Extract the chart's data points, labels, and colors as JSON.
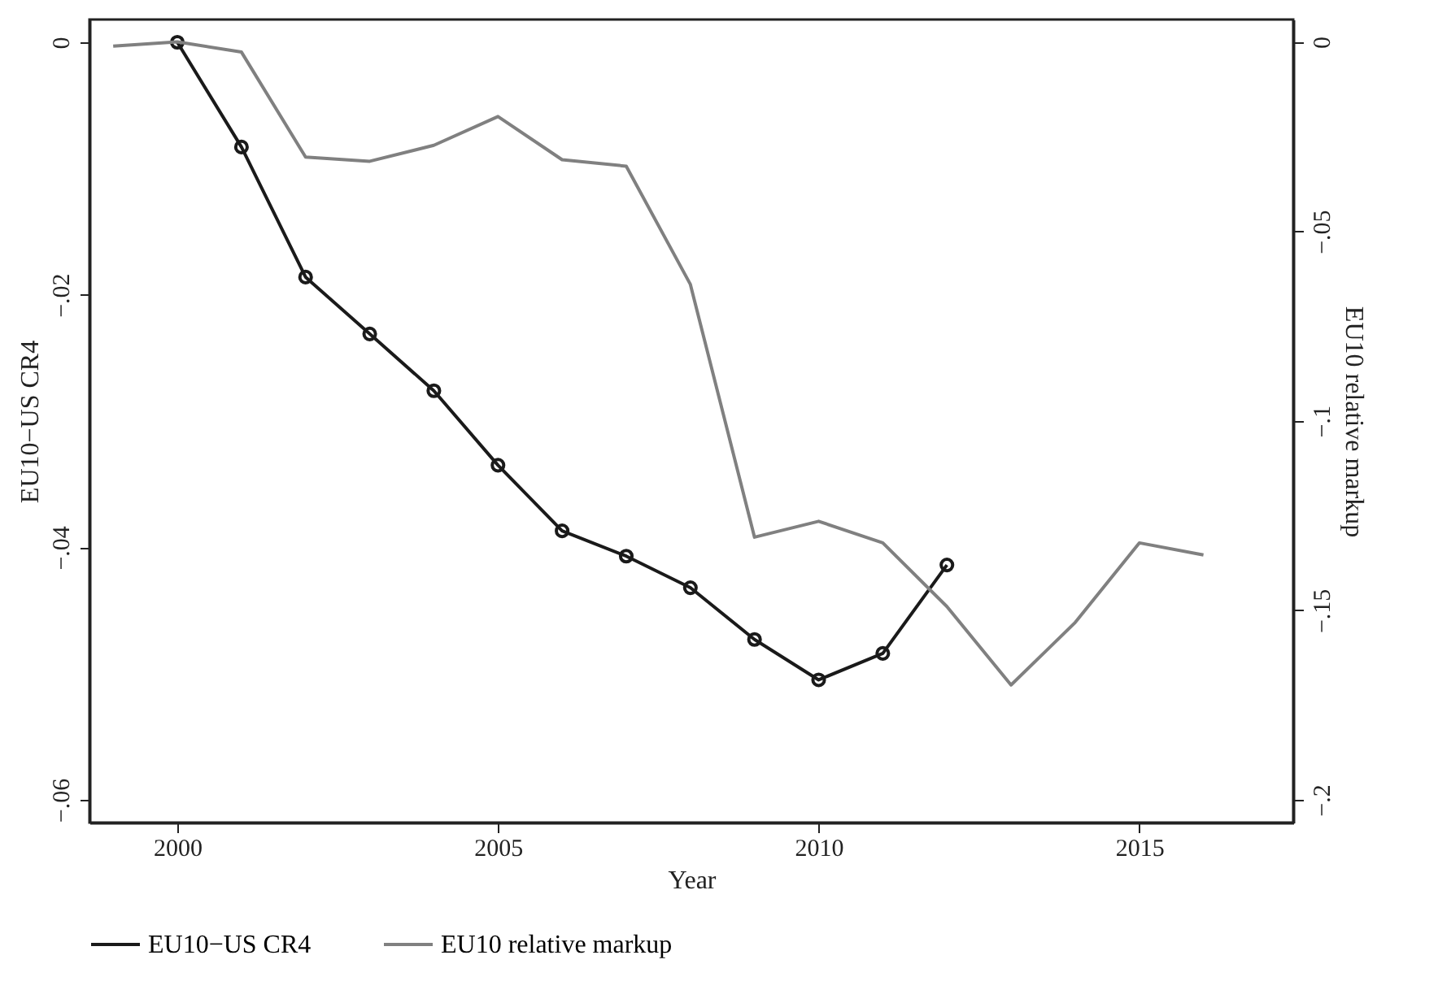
{
  "chart_data": {
    "type": "line",
    "xlabel": "Year",
    "ylabel": "EU10−US CR4",
    "y2label": "EU10 relative markup",
    "x": [
      1999,
      2000,
      2001,
      2002,
      2003,
      2004,
      2005,
      2006,
      2007,
      2008,
      2009,
      2010,
      2011,
      2012,
      2013,
      2014,
      2015,
      2016
    ],
    "series": [
      {
        "name": "EU10−US CR4",
        "color": "#1a1a1a",
        "marker": "circle",
        "values": [
          null,
          0,
          -0.0083,
          -0.0186,
          -0.0231,
          -0.0276,
          -0.0335,
          -0.0387,
          -0.0407,
          -0.0432,
          -0.0473,
          -0.0505,
          -0.0484,
          -0.0414,
          null,
          null,
          null,
          null
        ]
      },
      {
        "name": "EU10 relative markup",
        "color": "#808080",
        "marker": "none",
        "axis": "y2",
        "values": [
          -0.0011,
          0,
          -0.0027,
          -0.0304,
          -0.0315,
          -0.0273,
          -0.0197,
          -0.0311,
          -0.0328,
          -0.064,
          -0.1307,
          -0.1265,
          -0.1322,
          -0.149,
          -0.1697,
          -0.1532,
          -0.1322,
          -0.1354
        ]
      }
    ],
    "xlim": [
      1998.63,
      2017.4
    ],
    "xticks": [
      2000,
      2005,
      2010,
      2015
    ],
    "ylim": [
      -0.0618,
      0.0018
    ],
    "yticks": [
      0,
      {
        "value": -0.02,
        "label": "−.02"
      },
      {
        "value": -0.04,
        "label": "−.04"
      },
      {
        "value": -0.06,
        "label": "−.06"
      }
    ],
    "y2lim": [
      -0.206,
      0.0059
    ],
    "y2ticks": [
      0,
      {
        "value": -0.05,
        "label": "−.05"
      },
      {
        "value": -0.1,
        "label": "−.1"
      },
      {
        "value": -0.15,
        "label": "−.15"
      },
      {
        "value": -0.2,
        "label": "−.2"
      }
    ],
    "grid": false,
    "legend": "bottom",
    "line_style": "solid"
  }
}
